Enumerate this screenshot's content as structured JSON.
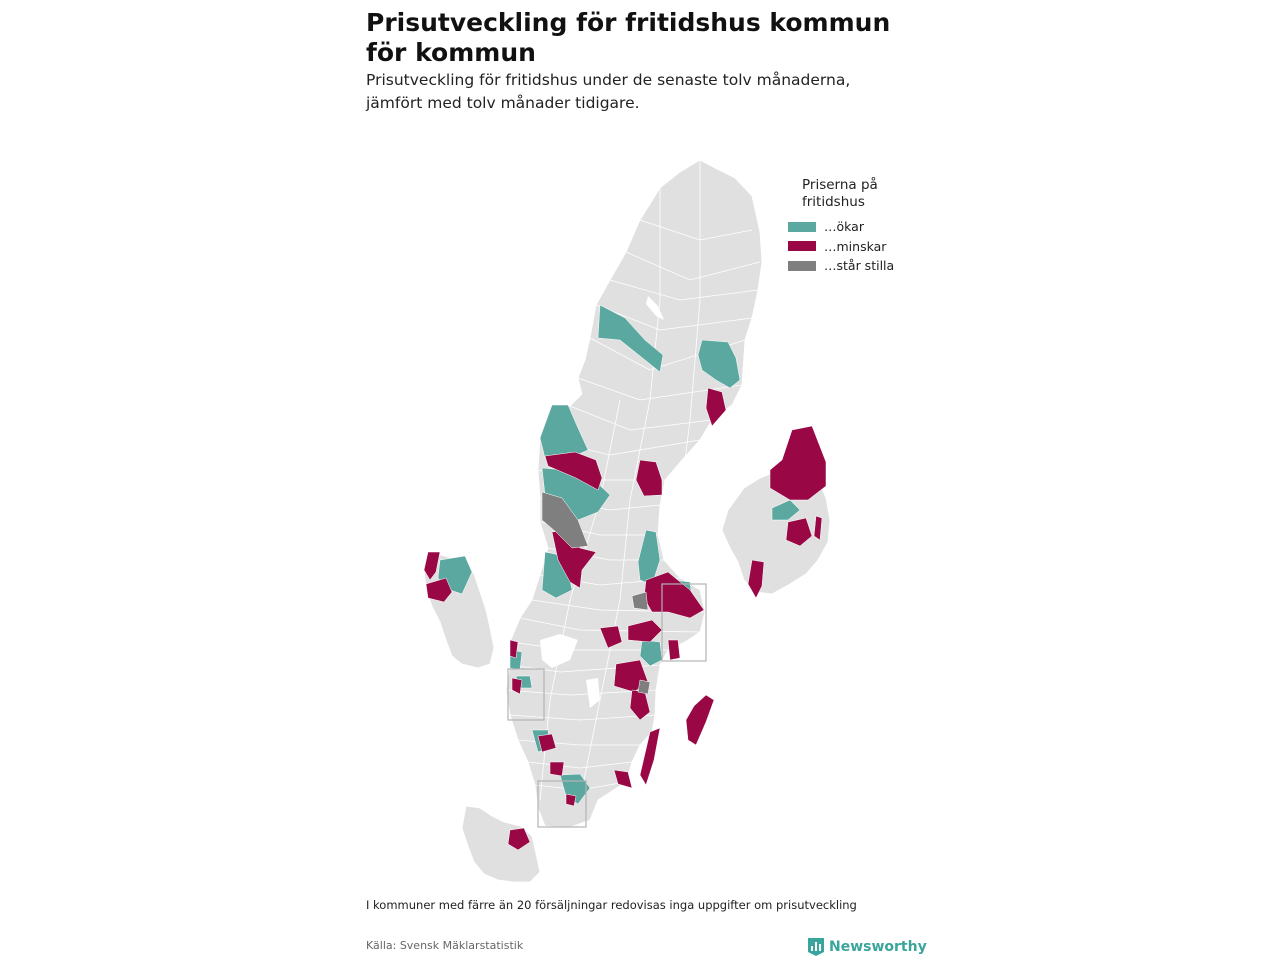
{
  "header": {
    "title": "Prisutveckling för fritidshus kommun för kommun",
    "subtitle": "Prisutveckling för fritidshus under de senaste tolv månaderna, jämfört med tolv månader tidigare."
  },
  "legend": {
    "title": "Priserna på fritidshus",
    "items": [
      {
        "label": "…ökar",
        "color": "#5aa89f"
      },
      {
        "label": "…minskar",
        "color": "#990845"
      },
      {
        "label": "…står stilla",
        "color": "#7f7f7f"
      }
    ]
  },
  "map": {
    "base_color": "#e0e0e0",
    "border_color": "#ffffff",
    "inset_frame_color": "#b3b3b3",
    "categories": {
      "increase": "#5aa89f",
      "decrease": "#990845",
      "unchanged": "#7f7f7f"
    }
  },
  "footer": {
    "note": "I kommuner med färre än 20 försäljningar redovisas inga uppgifter om prisutveckling",
    "source": "Källa: Svensk Mäklarstatistik",
    "brand": "Newsworthy",
    "brand_color": "#3aa59a"
  }
}
